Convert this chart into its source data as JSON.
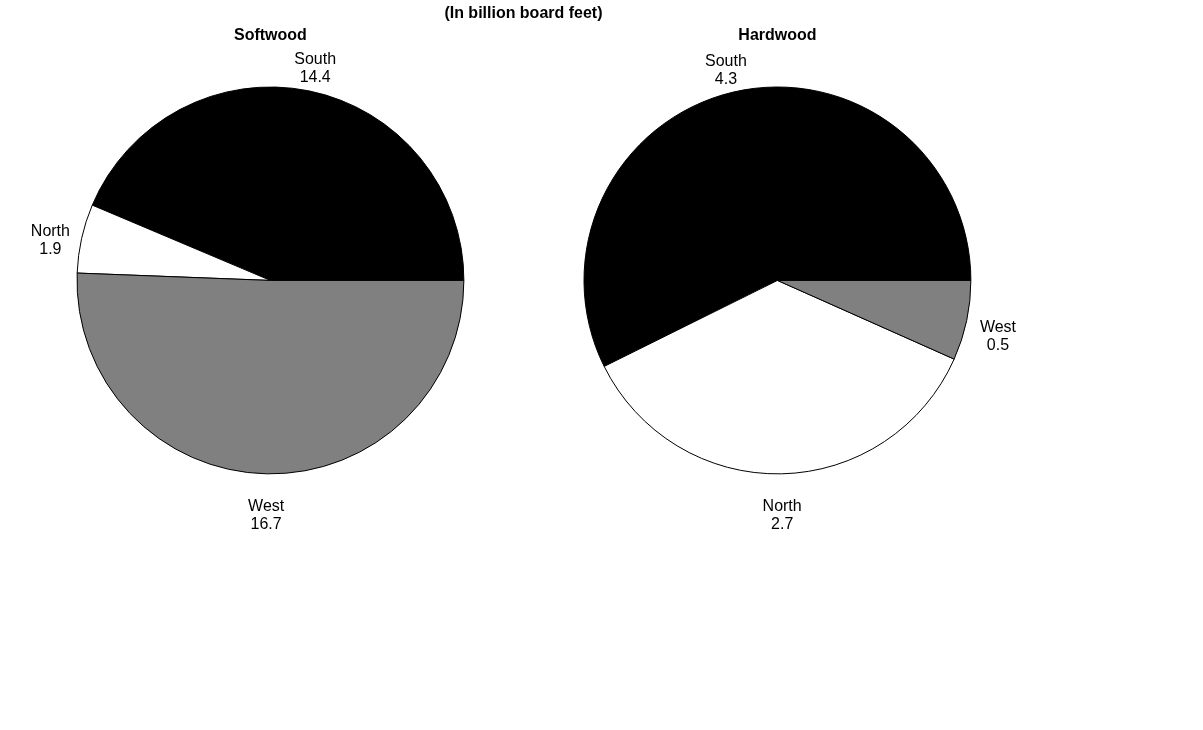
{
  "chart_data": [
    {
      "type": "pie",
      "title": "Softwood",
      "annotations": [
        "(In billion board feet)"
      ],
      "categories": [
        "South",
        "North",
        "West"
      ],
      "values": [
        14.4,
        1.9,
        16.7
      ],
      "colors": [
        "#000000",
        "#ffffff",
        "#808080"
      ],
      "data_labels": true
    },
    {
      "type": "pie",
      "title": "Hardwood",
      "categories": [
        "South",
        "North",
        "West"
      ],
      "values": [
        4.3,
        2.7,
        0.5
      ],
      "colors": [
        "#000000",
        "#ffffff",
        "#808080"
      ],
      "data_labels": true
    }
  ]
}
